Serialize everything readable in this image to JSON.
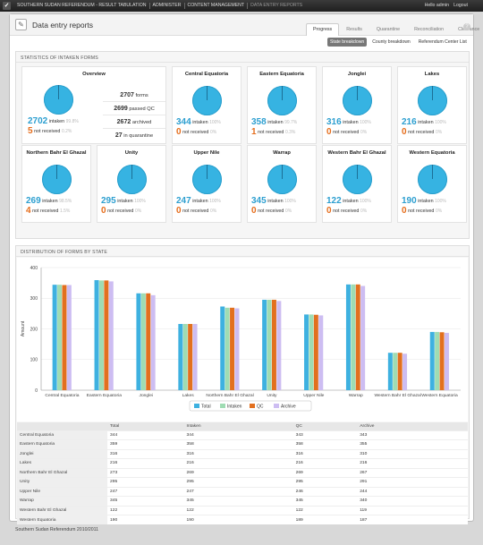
{
  "topbar": {
    "logo": "✓",
    "nav": [
      "SOUTHERN SUDAN REFERENDUM - RESULT TABULATION",
      "ADMINISTER",
      "CONTENT MANAGEMENT",
      "DATA ENTRY REPORTS"
    ],
    "user": "Hello admin",
    "logout": "Logout"
  },
  "page": {
    "title": "Data entry reports",
    "tabs": [
      "Progress",
      "Results",
      "Quarantine",
      "Reconciliation",
      "Clearance"
    ],
    "active_tab": "Progress",
    "help": "?",
    "subtabs": [
      "State breakdown",
      "County breakdown",
      "Referendum Center List"
    ],
    "active_subtab": "State breakdown"
  },
  "stats": {
    "header": "STATISTICS OF INTAKEN FORMS",
    "intaken_label": "intaken",
    "not_received_label": "not received",
    "overview": {
      "name": "Overview",
      "intaken": "2702",
      "intaken_pct": "99.8%",
      "not_received": "5",
      "not_received_pct": "0.2%",
      "list": [
        {
          "n": "2707",
          "t": "forms"
        },
        {
          "n": "2699",
          "t": "passed QC"
        },
        {
          "n": "2672",
          "t": "archived"
        },
        {
          "n": "27",
          "t": "in quarantine"
        }
      ]
    },
    "states": [
      {
        "name": "Central Equatoria",
        "intaken": "344",
        "ip": "100%",
        "nr": "0",
        "np": "0%"
      },
      {
        "name": "Eastern Equatoria",
        "intaken": "358",
        "ip": "99.7%",
        "nr": "1",
        "np": "0.3%"
      },
      {
        "name": "Jonglei",
        "intaken": "316",
        "ip": "100%",
        "nr": "0",
        "np": "0%"
      },
      {
        "name": "Lakes",
        "intaken": "216",
        "ip": "100%",
        "nr": "0",
        "np": "0%"
      },
      {
        "name": "Northern Bahr El Ghazal",
        "intaken": "269",
        "ip": "98.5%",
        "nr": "4",
        "np": "1.5%"
      },
      {
        "name": "Unity",
        "intaken": "295",
        "ip": "100%",
        "nr": "0",
        "np": "0%"
      },
      {
        "name": "Upper Nile",
        "intaken": "247",
        "ip": "100%",
        "nr": "0",
        "np": "0%"
      },
      {
        "name": "Warrap",
        "intaken": "345",
        "ip": "100%",
        "nr": "0",
        "np": "0%"
      },
      {
        "name": "Western Bahr El Ghazal",
        "intaken": "122",
        "ip": "100%",
        "nr": "0",
        "np": "0%"
      },
      {
        "name": "Western Equatoria",
        "intaken": "190",
        "ip": "100%",
        "nr": "0",
        "np": "0%"
      }
    ]
  },
  "distribution": {
    "header": "DISTRIBUTION OF FORMS BY STATE",
    "table_headers": [
      "",
      "Total",
      "Intaken",
      "QC",
      "Archive"
    ]
  },
  "colors": {
    "total": "#3eb1e0",
    "intaken": "#9fdcb3",
    "qc": "#e2701f",
    "archive": "#cdbdf2",
    "pie": "#36b3e2"
  },
  "chart_data": {
    "type": "bar",
    "categories": [
      "Central Equatoria",
      "Eastern Equatoria",
      "Jonglei",
      "Lakes",
      "Northern Bahr El Ghazal",
      "Unity",
      "Upper Nile",
      "Warrap",
      "Western Bahr El Ghazal",
      "Western Equatoria"
    ],
    "series": [
      {
        "name": "Total",
        "values": [
          344,
          359,
          316,
          216,
          273,
          295,
          247,
          345,
          122,
          190
        ]
      },
      {
        "name": "Intaken",
        "values": [
          344,
          358,
          316,
          216,
          269,
          295,
          247,
          345,
          122,
          190
        ]
      },
      {
        "name": "QC",
        "values": [
          343,
          358,
          316,
          216,
          269,
          295,
          246,
          345,
          122,
          189
        ]
      },
      {
        "name": "Archive",
        "values": [
          343,
          355,
          310,
          216,
          267,
          291,
          244,
          340,
          119,
          187
        ]
      }
    ],
    "ylabel": "Amount",
    "ylim": [
      0,
      400
    ],
    "yticks": [
      0,
      100,
      200,
      300,
      400
    ],
    "grid": true,
    "legend": "bottom"
  },
  "footer": "Southern Sudan Referendum 2010/2011"
}
